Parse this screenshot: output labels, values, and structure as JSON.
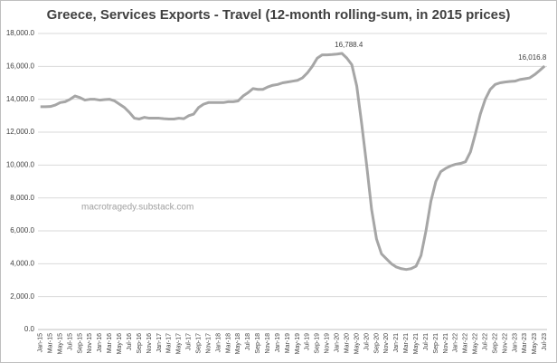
{
  "chart_data": {
    "type": "line",
    "title": "Greece, Services Exports - Travel (12-month rolling-sum, in 2015 prices)",
    "watermark": "macrotragedy.substack.com",
    "categories": [
      "Jan-15",
      null,
      "Mar-15",
      null,
      "May-15",
      null,
      "Jul-15",
      null,
      "Sep-15",
      null,
      "Nov-15",
      null,
      "Jan-16",
      null,
      "Mar-16",
      null,
      "May-16",
      null,
      "Jul-16",
      null,
      "Sep-16",
      null,
      "Nov-16",
      null,
      "Jan-17",
      null,
      "Mar-17",
      null,
      "May-17",
      null,
      "Jul-17",
      null,
      "Sep-17",
      null,
      "Nov-17",
      null,
      "Jan-18",
      null,
      "Mar-18",
      null,
      "May-18",
      null,
      "Jul-18",
      null,
      "Sep-18",
      null,
      "Nov-18",
      null,
      "Jan-19",
      null,
      "Mar-19",
      null,
      "May-19",
      null,
      "Jul-19",
      null,
      "Sep-19",
      null,
      "Nov-19",
      null,
      "Jan-20",
      null,
      "Mar-20",
      null,
      "May-20",
      null,
      "Jul-20",
      null,
      "Sep-20",
      null,
      "Nov-20",
      null,
      "Jan-21",
      null,
      "Mar-21",
      null,
      "May-21",
      null,
      "Jul-21",
      null,
      "Sep-21",
      null,
      "Nov-21",
      null,
      "Jan-22",
      null,
      "Mar-22",
      null,
      "May-22",
      null,
      "Jul-22",
      null,
      "Sep-22",
      null,
      "Nov-22",
      null,
      "Jan-23",
      null,
      "Mar-23",
      null,
      "May-23",
      null,
      "Jul-23"
    ],
    "values": [
      13550,
      13550,
      13560,
      13650,
      13800,
      13850,
      14000,
      14200,
      14100,
      13950,
      14000,
      14000,
      13950,
      13980,
      14000,
      13900,
      13700,
      13500,
      13200,
      12850,
      12800,
      12900,
      12850,
      12850,
      12850,
      12820,
      12800,
      12800,
      12850,
      12820,
      13000,
      13100,
      13500,
      13700,
      13800,
      13800,
      13800,
      13800,
      13850,
      13850,
      13900,
      14200,
      14400,
      14650,
      14600,
      14600,
      14750,
      14850,
      14900,
      15000,
      15050,
      15100,
      15150,
      15300,
      15600,
      16000,
      16500,
      16700,
      16700,
      16720,
      16750,
      16788.4,
      16500,
      16100,
      14800,
      12500,
      10000,
      7300,
      5500,
      4600,
      4300,
      4000,
      3800,
      3700,
      3650,
      3700,
      3850,
      4500,
      6000,
      7800,
      9000,
      9600,
      9800,
      9950,
      10050,
      10100,
      10200,
      10800,
      11900,
      13100,
      14000,
      14600,
      14900,
      15000,
      15050,
      15080,
      15100,
      15200,
      15250,
      15300,
      15500,
      15750,
      16016.8
    ],
    "value_labels": [
      null,
      null,
      null,
      null,
      null,
      null,
      null,
      null,
      null,
      null,
      null,
      null,
      null,
      null,
      null,
      null,
      null,
      null,
      null,
      null,
      null,
      null,
      null,
      null,
      null,
      null,
      null,
      null,
      null,
      null,
      null,
      null,
      null,
      null,
      null,
      null,
      null,
      null,
      null,
      null,
      null,
      null,
      null,
      null,
      null,
      null,
      null,
      null,
      null,
      null,
      null,
      null,
      null,
      null,
      null,
      null,
      null,
      null,
      null,
      null,
      null,
      "16,788.4",
      null,
      null,
      null,
      null,
      null,
      null,
      null,
      null,
      null,
      null,
      null,
      null,
      null,
      null,
      null,
      null,
      null,
      null,
      null,
      null,
      null,
      null,
      null,
      null,
      null,
      null,
      null,
      null,
      null,
      null,
      null,
      null,
      null,
      null,
      null,
      null,
      null,
      null,
      null,
      null,
      "16,016.8"
    ],
    "color": "#a6a6a6",
    "ylim": [
      0,
      18000
    ],
    "yticks": [
      {
        "value": 0,
        "label": "0.0"
      },
      {
        "value": 2000,
        "label": "2,000.0"
      },
      {
        "value": 4000,
        "label": "4,000.0"
      },
      {
        "value": 6000,
        "label": "6,000.0"
      },
      {
        "value": 8000,
        "label": "8,000.0"
      },
      {
        "value": 10000,
        "label": "10,000.0"
      },
      {
        "value": 12000,
        "label": "12,000.0"
      },
      {
        "value": 14000,
        "label": "14,000.0"
      },
      {
        "value": 16000,
        "label": "16,000.0"
      },
      {
        "value": 18000,
        "label": "18,000.0"
      }
    ],
    "grid": true
  }
}
